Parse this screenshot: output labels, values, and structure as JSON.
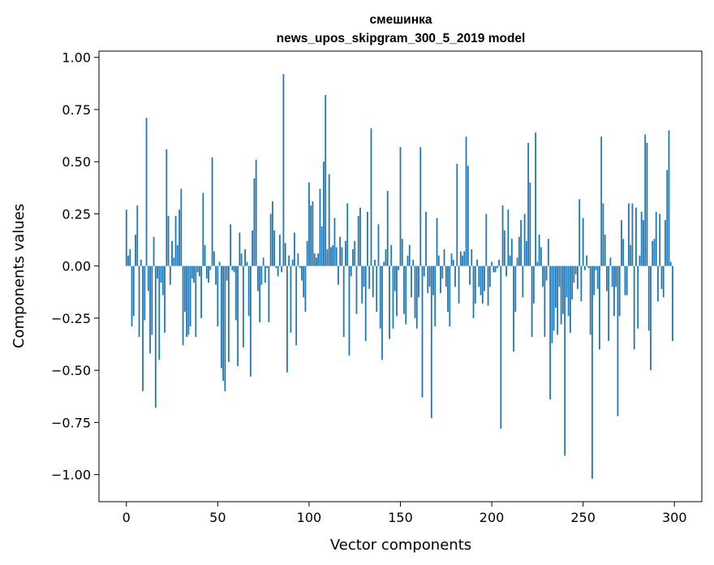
{
  "chart_data": {
    "type": "bar",
    "title": [
      "смешинка",
      "news_upos_skipgram_300_5_2019 model"
    ],
    "xlabel": "Vector components",
    "ylabel": "Components values",
    "xlim": [
      -15,
      315
    ],
    "ylim": [
      -1.13,
      1.03
    ],
    "xticks": [
      0,
      50,
      100,
      150,
      200,
      250,
      300
    ],
    "yticks": [
      -1.0,
      -0.75,
      -0.5,
      -0.25,
      0.0,
      0.25,
      0.5,
      0.75,
      1.0
    ],
    "ytick_labels": [
      "−1.00",
      "−0.75",
      "−0.50",
      "−0.25",
      "0.00",
      "0.25",
      "0.50",
      "0.75",
      "1.00"
    ],
    "grid": false,
    "bar_color": "#1f77b4",
    "x": "0..299 (component index)",
    "values": [
      0.27,
      0.05,
      0.08,
      -0.29,
      -0.24,
      0.15,
      0.29,
      -0.34,
      0.03,
      -0.6,
      -0.26,
      0.71,
      -0.12,
      -0.42,
      -0.33,
      0.14,
      -0.68,
      -0.06,
      -0.45,
      -0.08,
      -0.14,
      -0.32,
      0.56,
      0.24,
      -0.09,
      0.12,
      0.04,
      0.24,
      0.1,
      0.27,
      0.37,
      -0.38,
      -0.22,
      -0.34,
      -0.33,
      -0.29,
      -0.06,
      -0.08,
      -0.34,
      -0.03,
      -0.05,
      -0.25,
      0.35,
      0.1,
      -0.06,
      -0.08,
      -0.02,
      0.52,
      0.07,
      -0.09,
      -0.29,
      0.02,
      -0.49,
      -0.55,
      -0.6,
      -0.07,
      -0.46,
      0.2,
      -0.02,
      -0.03,
      -0.26,
      -0.48,
      0.16,
      0.06,
      -0.39,
      0.08,
      0.02,
      -0.24,
      -0.53,
      0.17,
      0.42,
      0.51,
      -0.12,
      -0.27,
      -0.09,
      0.04,
      -0.08,
      -0.01,
      -0.27,
      0.25,
      0.31,
      0.17,
      -0.01,
      -0.05,
      0.15,
      -0.03,
      0.92,
      0.11,
      -0.51,
      0.05,
      -0.32,
      0.03,
      0.16,
      -0.38,
      0.06,
      -0.01,
      -0.07,
      -0.15,
      -0.22,
      0.12,
      0.4,
      0.29,
      0.31,
      0.06,
      0.04,
      0.06,
      0.37,
      0.19,
      0.5,
      0.82,
      0.08,
      0.44,
      0.09,
      0.1,
      0.23,
      0.09,
      -0.09,
      0.14,
      0.09,
      -0.34,
      0.12,
      0.3,
      -0.43,
      -0.05,
      0.08,
      0.12,
      -0.23,
      0.24,
      0.28,
      -0.18,
      -0.1,
      -0.36,
      0.26,
      -0.11,
      0.66,
      -0.15,
      0.03,
      -0.22,
      0.2,
      -0.3,
      -0.45,
      0.02,
      0.08,
      0.36,
      -0.35,
      0.1,
      -0.3,
      -0.12,
      -0.24,
      -0.02,
      0.57,
      0.13,
      -0.23,
      -0.28,
      0.05,
      0.1,
      -0.15,
      0.03,
      -0.25,
      -0.3,
      -0.15,
      0.57,
      -0.63,
      -0.05,
      0.26,
      -0.13,
      -0.1,
      -0.73,
      -0.14,
      -0.29,
      0.23,
      0.05,
      -0.13,
      -0.06,
      0.08,
      -0.1,
      -0.22,
      -0.29,
      0.06,
      0.03,
      -0.1,
      0.49,
      -0.18,
      0.07,
      0.05,
      0.07,
      0.62,
      0.48,
      -0.09,
      0.08,
      -0.25,
      -0.18,
      0.03,
      -0.1,
      -0.14,
      -0.18,
      -0.12,
      0.25,
      -0.19,
      -0.1,
      0.02,
      -0.03,
      -0.03,
      -0.01,
      0.03,
      -0.78,
      0.29,
      0.17,
      -0.05,
      0.27,
      0.05,
      0.13,
      -0.41,
      -0.22,
      0.04,
      0.14,
      0.22,
      -0.15,
      0.25,
      0.12,
      0.59,
      0.4,
      -0.34,
      -0.18,
      0.64,
      0.02,
      0.15,
      0.09,
      -0.1,
      -0.34,
      -0.07,
      0.13,
      -0.64,
      -0.37,
      -0.31,
      -0.2,
      -0.33,
      -0.1,
      -0.28,
      -0.23,
      -0.91,
      -0.15,
      -0.24,
      -0.32,
      -0.16,
      -0.08,
      -0.04,
      -0.11,
      0.32,
      -0.17,
      0.23,
      -0.02,
      0.05,
      -0.01,
      -0.33,
      -1.02,
      -0.14,
      -0.02,
      -0.11,
      -0.4,
      0.62,
      0.3,
      0.15,
      -0.12,
      -0.36,
      0.04,
      -0.1,
      -0.24,
      -0.1,
      -0.72,
      -0.24,
      0.22,
      0.13,
      -0.14,
      -0.14,
      0.3,
      0.1,
      0.3,
      -0.4,
      0.28,
      -0.3,
      0.05,
      0.26,
      0.22,
      0.63,
      0.59,
      -0.31,
      -0.5,
      0.12,
      0.13,
      0.26,
      -0.17,
      0.25,
      -0.11,
      -0.15,
      0.22,
      0.46,
      0.65,
      0.02,
      -0.36
    ]
  }
}
